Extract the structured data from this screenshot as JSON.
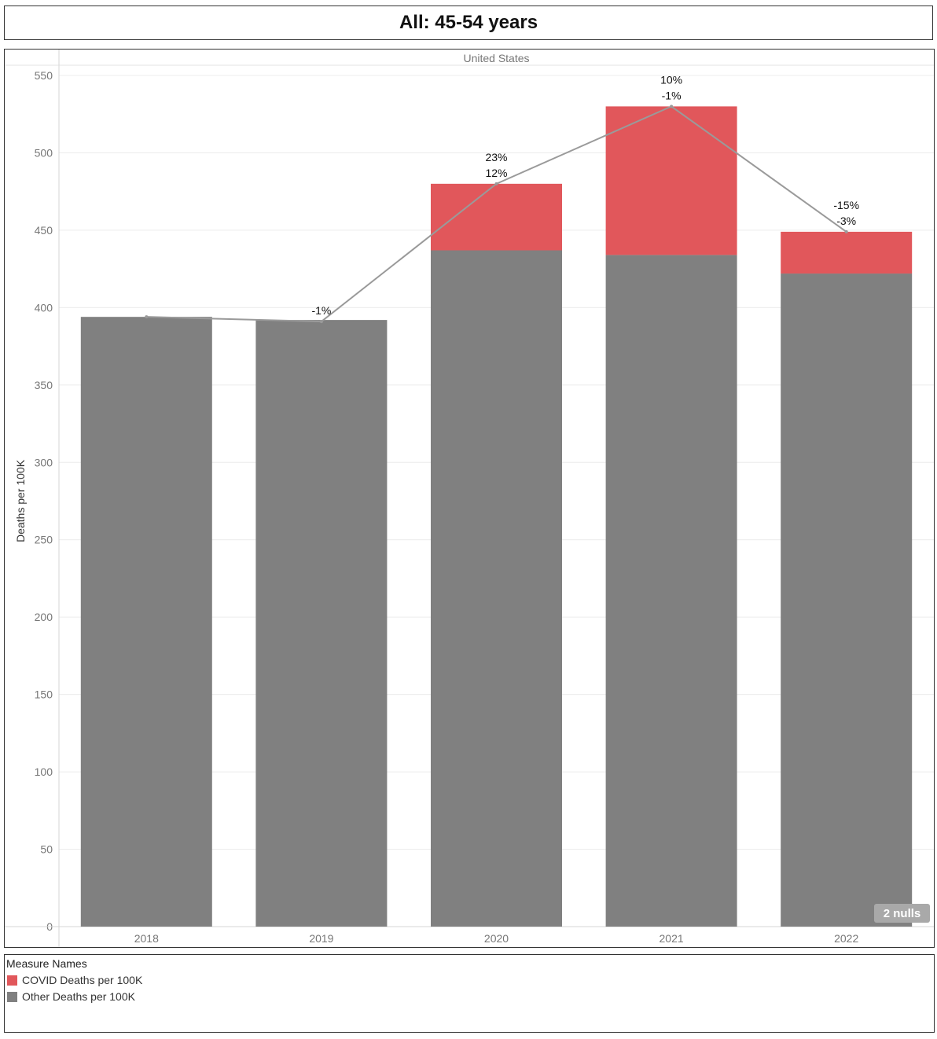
{
  "title": "All: 45-54 years",
  "chart_data": {
    "type": "bar",
    "stacked": true,
    "panel_header": "United States",
    "categories": [
      "2018",
      "2019",
      "2020",
      "2021",
      "2022"
    ],
    "series": [
      {
        "name": "Other Deaths per 100K",
        "color": "#808080",
        "values": [
          394,
          392,
          437,
          434,
          422
        ]
      },
      {
        "name": "COVID Deaths per 100K",
        "color": "#e1575b",
        "values": [
          0,
          0,
          43,
          96,
          27
        ]
      }
    ],
    "line": {
      "color": "#9a9a9a",
      "values": [
        394,
        391,
        480,
        530,
        449
      ]
    },
    "annotations": [
      {
        "category": "2018",
        "lines": []
      },
      {
        "category": "2019",
        "lines": [
          "-1%"
        ]
      },
      {
        "category": "2020",
        "lines": [
          "23%",
          "12%"
        ]
      },
      {
        "category": "2021",
        "lines": [
          "10%",
          "-1%"
        ]
      },
      {
        "category": "2022",
        "lines": [
          "-15%",
          "-3%"
        ]
      }
    ],
    "ylabel": "Deaths per 100K",
    "xlabel": "",
    "ylim": [
      0,
      550
    ],
    "yticks": [
      0,
      50,
      100,
      150,
      200,
      250,
      300,
      350,
      400,
      450,
      500,
      550
    ],
    "grid": true,
    "nulls_badge": "2 nulls"
  },
  "legend": {
    "title": "Measure Names",
    "items": [
      {
        "label": "COVID Deaths per 100K",
        "color": "#e1575b"
      },
      {
        "label": "Other Deaths per 100K",
        "color": "#808080"
      }
    ]
  }
}
